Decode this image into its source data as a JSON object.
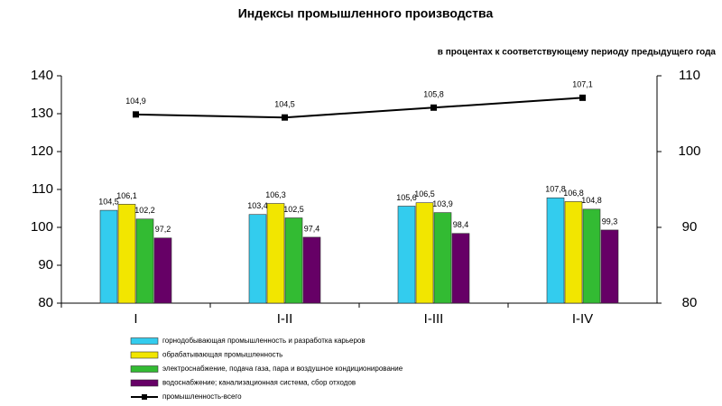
{
  "chart_data": {
    "type": "bar",
    "title": "Индексы промышленного производства",
    "subtitle": "в процентах к соответствующему периоду предыдущего года",
    "categories": [
      "I",
      "I-II",
      "I-III",
      "I-IV"
    ],
    "ylim": [
      80,
      140
    ],
    "yticks": [
      80,
      90,
      100,
      110,
      120,
      130,
      140
    ],
    "y2lim": [
      80,
      110
    ],
    "y2ticks": [
      80,
      90,
      100,
      110
    ],
    "grid": false,
    "legend": "bottom",
    "series": [
      {
        "name": "горнодобывающая промышленность и разработка карьеров",
        "color": "#33ccee",
        "values": [
          104.5,
          103.4,
          105.6,
          107.8
        ],
        "value_labels": [
          "104,5",
          "103,4",
          "105,6",
          "107,8"
        ]
      },
      {
        "name": "обрабатывающая промышленность",
        "color": "#f2e600",
        "values": [
          106.1,
          106.3,
          106.5,
          106.8
        ],
        "value_labels": [
          "106,1",
          "106,3",
          "106,5",
          "106,8"
        ]
      },
      {
        "name": "электроснабжение, подача газа, пара и воздушное кондиционирование",
        "color": "#33bb33",
        "values": [
          102.2,
          102.5,
          103.9,
          104.8
        ],
        "value_labels": [
          "102,2",
          "102,5",
          "103,9",
          "104,8"
        ]
      },
      {
        "name": "водоснабжение; канализационная система, сбор отходов",
        "color": "#660066",
        "values": [
          97.2,
          97.4,
          98.4,
          99.3
        ],
        "value_labels": [
          "97,2",
          "97,4",
          "98,4",
          "99,3"
        ]
      },
      {
        "name": "промышленность-всего",
        "type": "line",
        "axis": "y2",
        "color": "#000000",
        "values": [
          104.9,
          104.5,
          105.8,
          107.1
        ],
        "value_labels": [
          "104,9",
          "104,5",
          "105,8",
          "107,1"
        ]
      }
    ]
  }
}
